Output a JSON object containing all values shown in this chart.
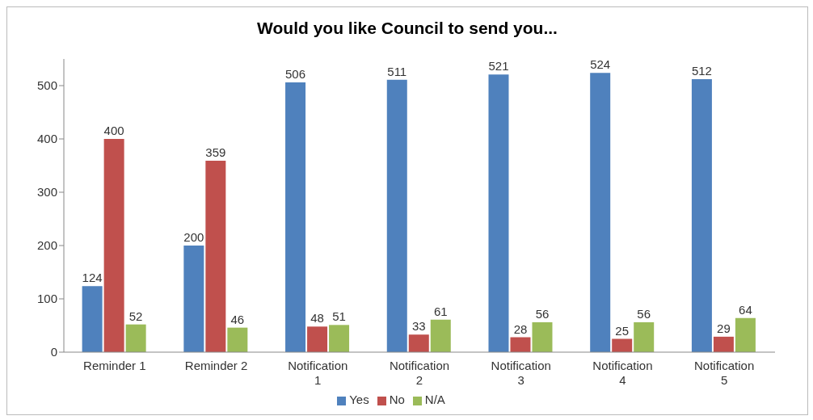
{
  "chart_data": {
    "type": "bar",
    "title": "Would you like Council to send you...",
    "categories": [
      "Reminder 1",
      "Reminder 2",
      "Notification 1",
      "Notification 2",
      "Notification 3",
      "Notification 4",
      "Notification 5"
    ],
    "series": [
      {
        "name": "Yes",
        "color": "#4f81bd",
        "values": [
          124,
          200,
          506,
          511,
          521,
          524,
          512
        ]
      },
      {
        "name": "No",
        "color": "#c0504d",
        "values": [
          400,
          359,
          48,
          33,
          28,
          25,
          29
        ]
      },
      {
        "name": "N/A",
        "color": "#9bbb59",
        "values": [
          52,
          46,
          51,
          61,
          56,
          56,
          64
        ]
      }
    ],
    "ylim": [
      0,
      550
    ],
    "yticks": [
      0,
      100,
      200,
      300,
      400,
      500
    ],
    "grid": false,
    "legend": "bottom",
    "data_labels": true
  }
}
